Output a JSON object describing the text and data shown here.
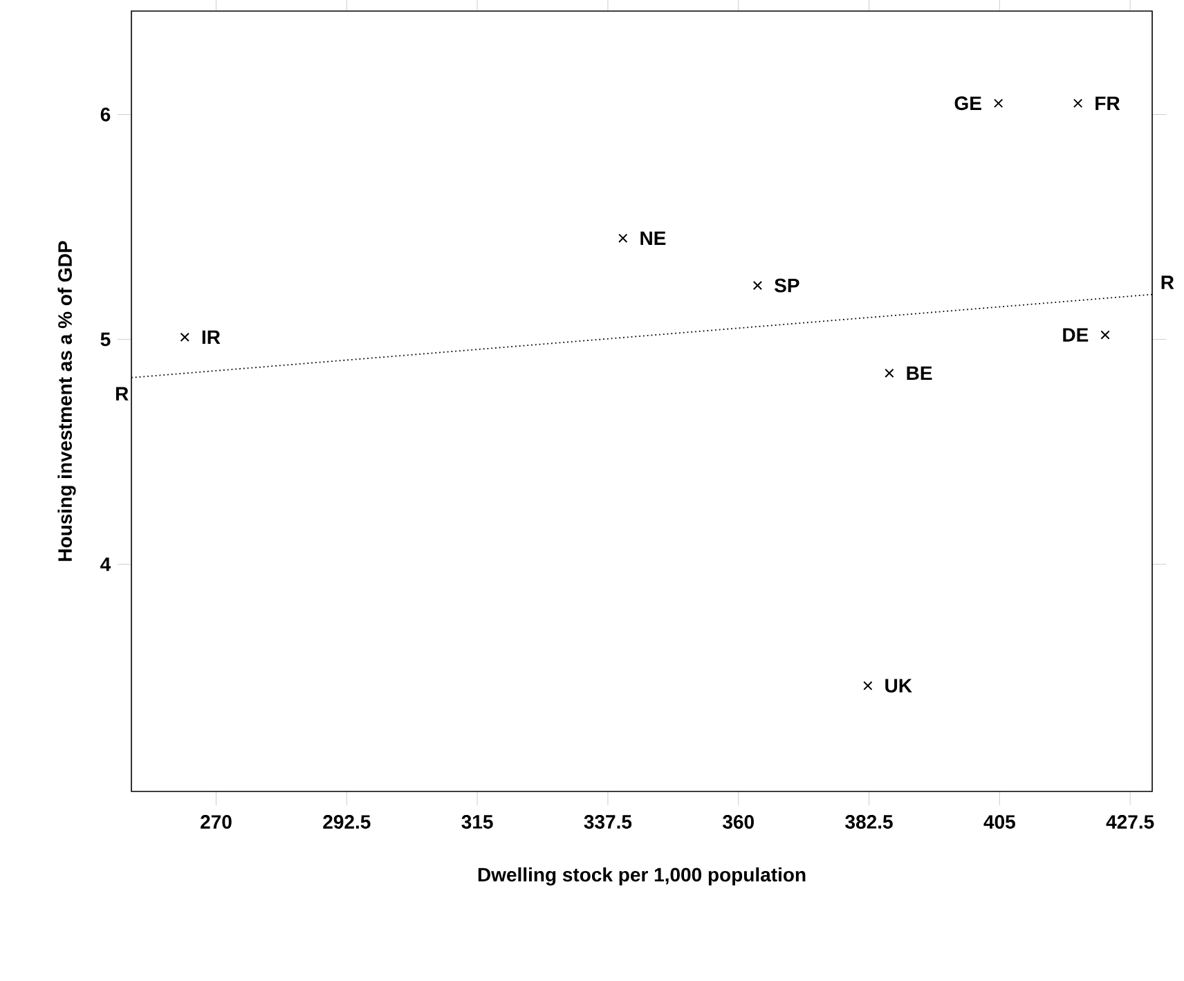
{
  "chart_data": {
    "type": "scatter",
    "xlabel": "Dwelling stock per 1,000 population",
    "ylabel": "Housing investment as a % of GDP",
    "xlim": [
      255.4,
      431.3
    ],
    "ylim": [
      2.99,
      6.46
    ],
    "xticks": [
      270,
      292.5,
      315,
      337.5,
      360,
      382.5,
      405,
      427.5
    ],
    "yticks": [
      4,
      5,
      6
    ],
    "grid": false,
    "series": [
      {
        "marker": "cross",
        "color": "#000000",
        "x": [
          264.6,
          340.1,
          363.3,
          404.8,
          418.5,
          423.2,
          386.0,
          382.3
        ],
        "values": [
          5.01,
          5.45,
          5.24,
          6.05,
          6.05,
          5.02,
          4.85,
          3.46
        ]
      },
      {
        "type": "line",
        "name": "R",
        "marker": "none",
        "line_style": "dotted",
        "color": "#000000",
        "x": [
          255.4,
          431.3
        ],
        "values": [
          4.83,
          5.2
        ]
      }
    ],
    "annotations": [
      {
        "text": "IR",
        "x": 264.6,
        "y": 5.01
      },
      {
        "text": "NE",
        "x": 340.1,
        "y": 5.45
      },
      {
        "text": "SP",
        "x": 363.3,
        "y": 5.24
      },
      {
        "text": "GE",
        "x": 404.8,
        "y": 6.05
      },
      {
        "text": "FR",
        "x": 418.5,
        "y": 6.05
      },
      {
        "text": "DE",
        "x": 423.2,
        "y": 5.02
      },
      {
        "text": "BE",
        "x": 386.0,
        "y": 4.85
      },
      {
        "text": "UK",
        "x": 382.3,
        "y": 3.46
      }
    ]
  }
}
